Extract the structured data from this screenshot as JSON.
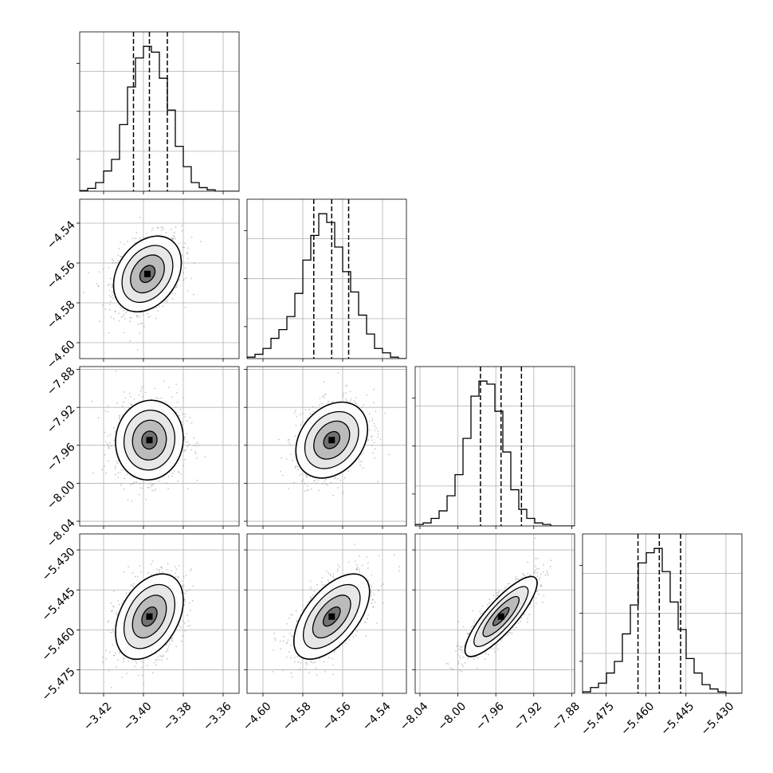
{
  "chart_data": {
    "type": "corner",
    "title": "",
    "grid": true,
    "parameters": [
      {
        "index": 0,
        "range": [
          -3.432,
          -3.352
        ],
        "ticks": [
          -3.42,
          -3.4,
          -3.38,
          -3.36
        ],
        "tick_labels": [
          "−3.42",
          "−3.40",
          "−3.38",
          "−3.36"
        ],
        "quantiles": [
          -3.405,
          -3.397,
          -3.388
        ],
        "hist_counts": [
          0.005,
          0.02,
          0.06,
          0.14,
          0.22,
          0.46,
          0.72,
          0.92,
          1.0,
          0.96,
          0.78,
          0.56,
          0.31,
          0.17,
          0.06,
          0.025,
          0.01,
          0.0,
          0.0,
          0.0
        ]
      },
      {
        "index": 1,
        "range": [
          -4.608,
          -4.528
        ],
        "ticks": [
          -4.6,
          -4.58,
          -4.56,
          -4.54
        ],
        "tick_labels": [
          "−4.60",
          "−4.58",
          "−4.56",
          "−4.54"
        ],
        "quantiles": [
          -4.5745,
          -4.5655,
          -4.557
        ],
        "hist_counts": [
          0.01,
          0.03,
          0.07,
          0.14,
          0.2,
          0.29,
          0.45,
          0.68,
          0.85,
          1.0,
          0.94,
          0.77,
          0.6,
          0.46,
          0.3,
          0.17,
          0.07,
          0.04,
          0.01,
          0.0
        ]
      },
      {
        "index": 2,
        "range": [
          -8.045,
          -7.877
        ],
        "ticks": [
          -8.04,
          -8.0,
          -7.96,
          -7.92,
          -7.88
        ],
        "tick_labels": [
          "−8.04",
          "−8.00",
          "−7.96",
          "−7.92",
          "−7.88"
        ],
        "quantiles": [
          -7.9762,
          -7.9545,
          -7.933
        ],
        "hist_counts": [
          0.01,
          0.02,
          0.05,
          0.1,
          0.2,
          0.34,
          0.58,
          0.86,
          0.96,
          0.94,
          0.76,
          0.49,
          0.24,
          0.11,
          0.05,
          0.02,
          0.01,
          0.0,
          0.0,
          0.0
        ]
      },
      {
        "index": 3,
        "range": [
          -5.4838,
          -5.424
        ],
        "ticks": [
          -5.475,
          -5.46,
          -5.445,
          -5.43
        ],
        "tick_labels": [
          "−5.475",
          "−5.460",
          "−5.445",
          "−5.430"
        ],
        "quantiles": [
          -5.463,
          -5.455,
          -5.447
        ],
        "hist_counts": [
          0.01,
          0.04,
          0.07,
          0.14,
          0.22,
          0.41,
          0.61,
          0.9,
          0.97,
          1.0,
          0.84,
          0.63,
          0.44,
          0.24,
          0.14,
          0.06,
          0.03,
          0.01,
          0.0,
          0.0
        ]
      }
    ],
    "pairs": [
      {
        "x": 0,
        "y": 1,
        "mean": [
          -3.398,
          -4.5655
        ],
        "sd": [
          0.0085,
          0.0095
        ],
        "corr": 0.3
      },
      {
        "x": 0,
        "y": 2,
        "mean": [
          -3.397,
          -7.9545
        ],
        "sd": [
          0.0085,
          0.021
        ],
        "corr": 0.05
      },
      {
        "x": 1,
        "y": 2,
        "mean": [
          -4.5655,
          -7.9545
        ],
        "sd": [
          0.009,
          0.02
        ],
        "corr": 0.28
      },
      {
        "x": 0,
        "y": 3,
        "mean": [
          -3.397,
          -5.455
        ],
        "sd": [
          0.0085,
          0.008
        ],
        "corr": 0.38
      },
      {
        "x": 1,
        "y": 3,
        "mean": [
          -4.5655,
          -5.455
        ],
        "sd": [
          0.0095,
          0.008
        ],
        "corr": 0.58
      },
      {
        "x": 2,
        "y": 3,
        "mean": [
          -7.9545,
          -5.455
        ],
        "sd": [
          0.019,
          0.0075
        ],
        "corr": 0.84
      }
    ]
  }
}
